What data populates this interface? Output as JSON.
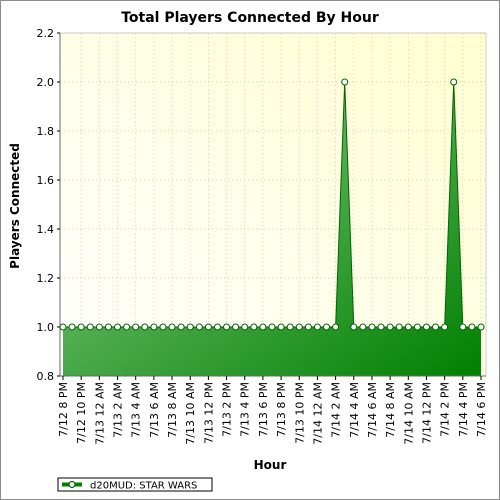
{
  "chart_data": {
    "type": "area",
    "title": "Total Players Connected By Hour",
    "xlabel": "Hour",
    "ylabel": "Players Connected",
    "ylim": [
      0.8,
      2.2
    ],
    "yticks": [
      "0.8",
      "1.0",
      "1.2",
      "1.4",
      "1.6",
      "1.8",
      "2.0",
      "2.2"
    ],
    "grid": true,
    "legend_position": "bottom-left",
    "colors": {
      "plot_bg_top": "#ffffd0",
      "plot_bg_bottom": "#ffffff",
      "fill_light": "#8fd08f",
      "fill_dark": "#008000",
      "line": "#006400",
      "grid": "#c8c8a0"
    },
    "x_tick_labels": [
      "7/12 8 PM",
      "7/12 10 PM",
      "7/13 12 AM",
      "7/13 2 AM",
      "7/13 4 AM",
      "7/13 6 AM",
      "7/13 8 AM",
      "7/13 10 AM",
      "7/13 12 PM",
      "7/13 2 PM",
      "7/13 4 PM",
      "7/13 6 PM",
      "7/13 8 PM",
      "7/13 10 PM",
      "7/14 12 AM",
      "7/14 2 AM",
      "7/14 4 AM",
      "7/14 6 AM",
      "7/14 8 AM",
      "7/14 10 AM",
      "7/14 12 PM",
      "7/14 2 PM",
      "7/14 4 PM",
      "7/14 6 PM"
    ],
    "series": [
      {
        "name": "d20MUD: STAR WARS",
        "x": [
          "7/12 8 PM",
          "7/12 9 PM",
          "7/12 10 PM",
          "7/12 11 PM",
          "7/13 12 AM",
          "7/13 1 AM",
          "7/13 2 AM",
          "7/13 3 AM",
          "7/13 4 AM",
          "7/13 5 AM",
          "7/13 6 AM",
          "7/13 7 AM",
          "7/13 8 AM",
          "7/13 9 AM",
          "7/13 10 AM",
          "7/13 11 AM",
          "7/13 12 PM",
          "7/13 1 PM",
          "7/13 2 PM",
          "7/13 3 PM",
          "7/13 4 PM",
          "7/13 5 PM",
          "7/13 6 PM",
          "7/13 7 PM",
          "7/13 8 PM",
          "7/13 9 PM",
          "7/13 10 PM",
          "7/13 11 PM",
          "7/14 12 AM",
          "7/14 1 AM",
          "7/14 2 AM",
          "7/14 3 AM",
          "7/14 4 AM",
          "7/14 5 AM",
          "7/14 6 AM",
          "7/14 7 AM",
          "7/14 8 AM",
          "7/14 9 AM",
          "7/14 10 AM",
          "7/14 11 AM",
          "7/14 12 PM",
          "7/14 1 PM",
          "7/14 2 PM",
          "7/14 3 PM",
          "7/14 4 PM",
          "7/14 5 PM",
          "7/14 6 PM"
        ],
        "values": [
          1,
          1,
          1,
          1,
          1,
          1,
          1,
          1,
          1,
          1,
          1,
          1,
          1,
          1,
          1,
          1,
          1,
          1,
          1,
          1,
          1,
          1,
          1,
          1,
          1,
          1,
          1,
          1,
          1,
          1,
          1,
          2,
          1,
          1,
          1,
          1,
          1,
          1,
          1,
          1,
          1,
          1,
          1,
          2,
          1,
          1,
          1
        ]
      }
    ]
  }
}
